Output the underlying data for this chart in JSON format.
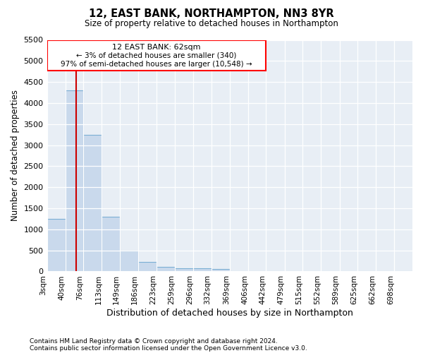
{
  "title": "12, EAST BANK, NORTHAMPTON, NN3 8YR",
  "subtitle": "Size of property relative to detached houses in Northampton",
  "xlabel": "Distribution of detached houses by size in Northampton",
  "ylabel": "Number of detached properties",
  "footnote1": "Contains HM Land Registry data © Crown copyright and database right 2024.",
  "footnote2": "Contains public sector information licensed under the Open Government Licence v3.0.",
  "annotation_line1": "12 EAST BANK: 62sqm",
  "annotation_line2": "← 3% of detached houses are smaller (340)",
  "annotation_line3": "97% of semi-detached houses are larger (10,548) →",
  "bar_color": "#c9d9ec",
  "bar_edge_color": "#7bafd4",
  "vline_color": "#cc0000",
  "vline_x": 62,
  "bin_edges": [
    3,
    40,
    76,
    113,
    149,
    186,
    223,
    259,
    296,
    332,
    369,
    406,
    442,
    479,
    515,
    552,
    589,
    625,
    662,
    698,
    735
  ],
  "bar_heights": [
    1250,
    4300,
    3250,
    1300,
    500,
    230,
    100,
    75,
    75,
    50,
    5,
    3,
    2,
    1,
    1,
    0,
    0,
    0,
    0,
    0
  ],
  "ylim": [
    0,
    5500
  ],
  "yticks": [
    0,
    500,
    1000,
    1500,
    2000,
    2500,
    3000,
    3500,
    4000,
    4500,
    5000,
    5500
  ],
  "background_color": "#ffffff",
  "plot_background": "#e8eef5"
}
